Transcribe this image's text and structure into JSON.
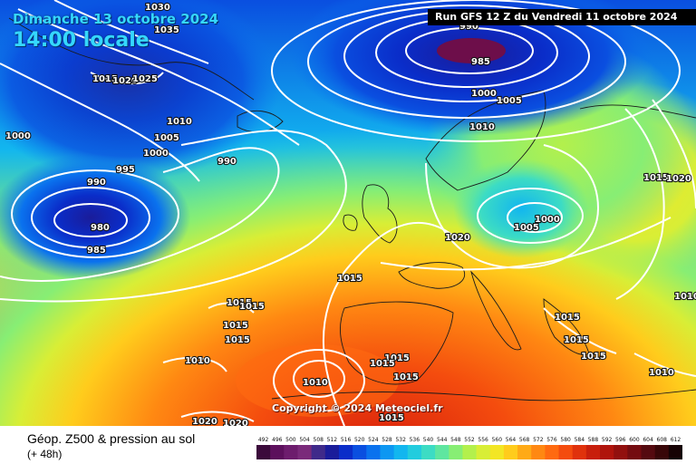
{
  "header": {
    "date_title": "Dimanche 13 octobre 2024",
    "time_title": "14:00 locale",
    "run_label": "Run GFS 12 Z du Vendredi 11 octobre 2024"
  },
  "copyright": "Copyright © 2024 Meteociel.fr",
  "legend": {
    "title": "Géop. Z500 & pression au sol",
    "subtitle": "(+ 48h)",
    "scale_values": [
      "492",
      "496",
      "500",
      "504",
      "508",
      "512",
      "516",
      "520",
      "524",
      "528",
      "532",
      "536",
      "540",
      "544",
      "548",
      "552",
      "556",
      "560",
      "564",
      "568",
      "572",
      "576",
      "580",
      "584",
      "588",
      "592",
      "596",
      "600",
      "604",
      "608",
      "612"
    ],
    "scale_colors": [
      "#3b0a3b",
      "#5c0f5c",
      "#6d1c6d",
      "#7a2a7a",
      "#3f2a8a",
      "#1a1c9a",
      "#0a2dc9",
      "#0a4fe0",
      "#0a72ee",
      "#0d97f2",
      "#12b6ef",
      "#22ccde",
      "#3cdcc4",
      "#5fe6a0",
      "#87ee74",
      "#b3f04c",
      "#d8ee36",
      "#f3e624",
      "#ffcc1c",
      "#ffaa16",
      "#ff8812",
      "#ff6a10",
      "#f44c0e",
      "#e0320c",
      "#c81f0c",
      "#b0140c",
      "#92100e",
      "#740c10",
      "#550a10",
      "#380608",
      "#160204"
    ]
  },
  "isobar_labels": [
    {
      "text": "1030"
    },
    {
      "text": "1035"
    },
    {
      "text": "1015"
    },
    {
      "text": "1020"
    },
    {
      "text": "1025"
    },
    {
      "text": "1010"
    },
    {
      "text": "1005"
    },
    {
      "text": "1000"
    },
    {
      "text": "995"
    },
    {
      "text": "990"
    },
    {
      "text": "980"
    },
    {
      "text": "985"
    },
    {
      "text": "1000"
    },
    {
      "text": "1010"
    },
    {
      "text": "990"
    },
    {
      "text": "990"
    },
    {
      "text": "985"
    },
    {
      "text": "1000"
    },
    {
      "text": "1005"
    },
    {
      "text": "1010"
    },
    {
      "text": "1015"
    },
    {
      "text": "1020"
    },
    {
      "text": "1000"
    },
    {
      "text": "1005"
    },
    {
      "text": "1015"
    },
    {
      "text": "1020"
    },
    {
      "text": "1015"
    },
    {
      "text": "1015"
    },
    {
      "text": "1015"
    },
    {
      "text": "1015"
    },
    {
      "text": "1010"
    },
    {
      "text": "1015"
    },
    {
      "text": "1010"
    },
    {
      "text": "1015"
    },
    {
      "text": "1015"
    },
    {
      "text": "1015"
    },
    {
      "text": "1015"
    },
    {
      "text": "1015"
    },
    {
      "text": "1010"
    },
    {
      "text": "1020"
    },
    {
      "text": "1020"
    },
    {
      "text": "1015"
    },
    {
      "text": "1010"
    }
  ]
}
